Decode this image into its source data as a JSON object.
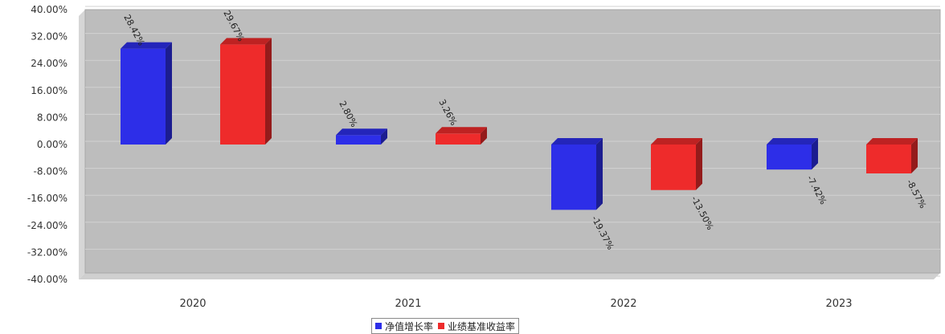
{
  "chart_data": {
    "type": "bar",
    "title": "",
    "xlabel": "",
    "ylabel": "",
    "categories": [
      "2020",
      "2021",
      "2022",
      "2023"
    ],
    "series": [
      {
        "name": "净值增长率",
        "color": "#2d2ee8",
        "values": [
          28.42,
          2.8,
          -19.37,
          -7.42
        ],
        "labels": [
          "28.42%",
          "2.80%",
          "-19.37%",
          "-7.42%"
        ]
      },
      {
        "name": "业绩基准收益率",
        "color": "#ee2b2b",
        "values": [
          29.67,
          3.26,
          -13.5,
          -8.57
        ],
        "labels": [
          "29.67%",
          "3.26%",
          "-13.50%",
          "-8.57%"
        ]
      }
    ],
    "ylim": [
      -40,
      40
    ],
    "yticks": [
      "40.00%",
      "32.00%",
      "24.00%",
      "16.00%",
      "8.00%",
      "0.00%",
      "-8.00%",
      "-16.00%",
      "-24.00%",
      "-32.00%",
      "-40.00%"
    ],
    "grid": true,
    "legend_position": "bottom"
  }
}
